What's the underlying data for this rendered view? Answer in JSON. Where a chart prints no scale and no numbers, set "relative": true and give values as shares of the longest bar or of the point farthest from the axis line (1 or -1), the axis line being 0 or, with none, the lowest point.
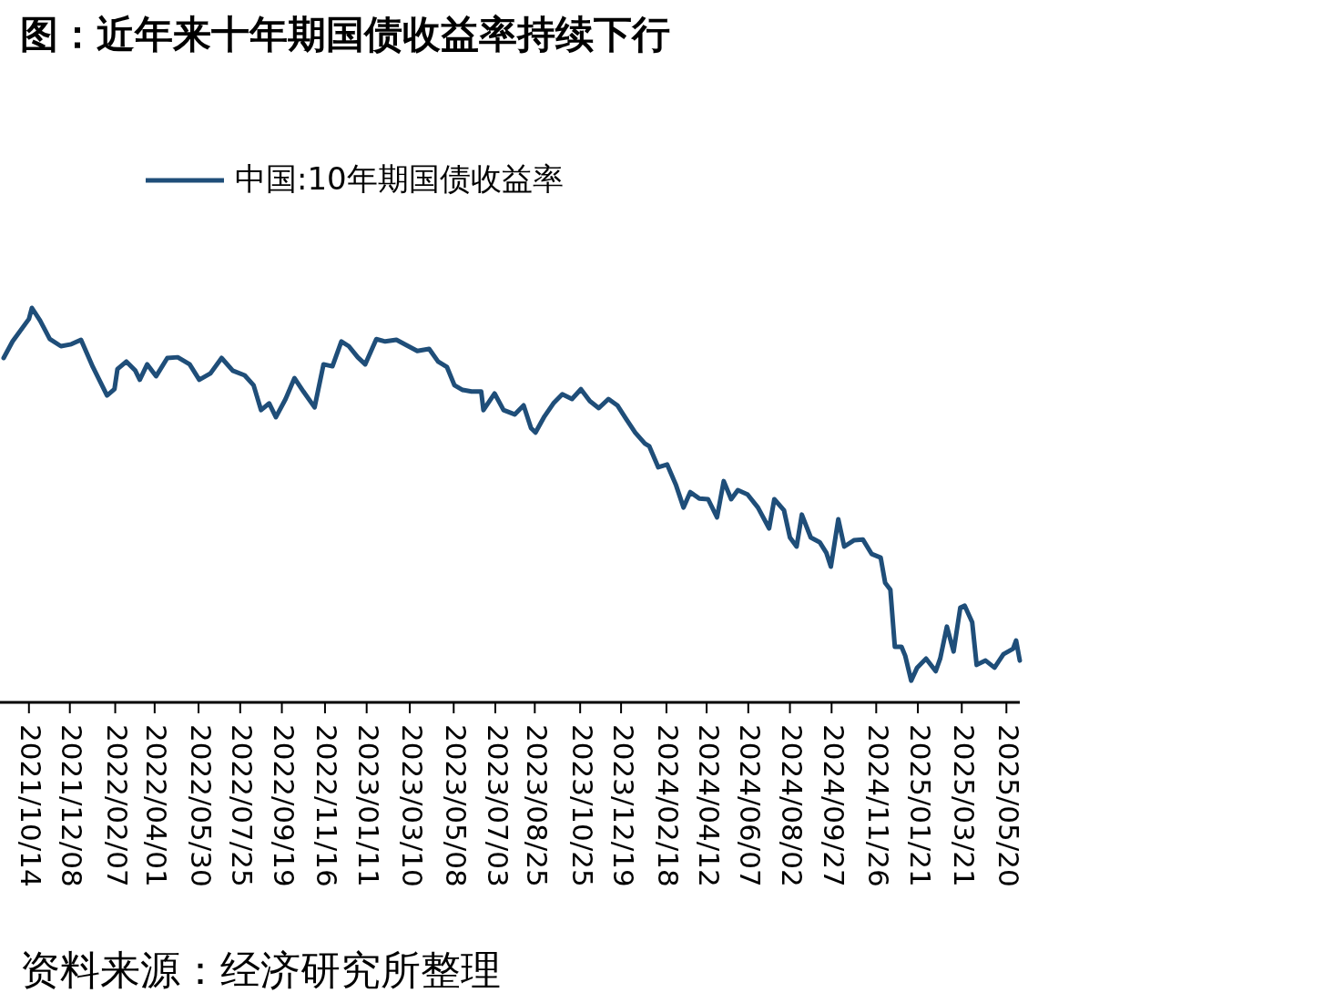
{
  "chart_data": {
    "type": "line",
    "title": "图：近年来十年期国债收益率持续下行",
    "relative": true,
    "legend": "top left",
    "xlim": [
      "2021-09-10",
      "2025-06-07"
    ],
    "xticks": [
      {
        "value": "2021-10-14",
        "label": "2021/10/14"
      },
      {
        "value": "2021-12-08",
        "label": "2021/12/08"
      },
      {
        "value": "2022-02-07",
        "label": "2022/02/07"
      },
      {
        "value": "2022-04-01",
        "label": "2022/04/01"
      },
      {
        "value": "2022-05-30",
        "label": "2022/05/30"
      },
      {
        "value": "2022-07-25",
        "label": "2022/07/25"
      },
      {
        "value": "2022-09-19",
        "label": "2022/09/19"
      },
      {
        "value": "2022-11-16",
        "label": "2022/11/16"
      },
      {
        "value": "2023-01-11",
        "label": "2023/01/11"
      },
      {
        "value": "2023-03-10",
        "label": "2023/03/10"
      },
      {
        "value": "2023-05-08",
        "label": "2023/05/08"
      },
      {
        "value": "2023-07-03",
        "label": "2023/07/03"
      },
      {
        "value": "2023-08-25",
        "label": "2023/08/25"
      },
      {
        "value": "2023-10-25",
        "label": "2023/10/25"
      },
      {
        "value": "2023-12-19",
        "label": "2023/12/19"
      },
      {
        "value": "2024-02-18",
        "label": "2024/02/18"
      },
      {
        "value": "2024-04-12",
        "label": "2024/04/12"
      },
      {
        "value": "2024-06-07",
        "label": "2024/06/07"
      },
      {
        "value": "2024-08-02",
        "label": "2024/08/02"
      },
      {
        "value": "2024-09-27",
        "label": "2024/09/27"
      },
      {
        "value": "2024-11-26",
        "label": "2024/11/26"
      },
      {
        "value": "2025-01-21",
        "label": "2025/01/21"
      },
      {
        "value": "2025-03-21",
        "label": "2025/03/21"
      },
      {
        "value": "2025-05-20",
        "label": "2025/05/20"
      }
    ],
    "x": [
      "2021-09-10",
      "2021-09-22",
      "2021-10-14",
      "2021-10-18",
      "2021-10-29",
      "2021-11-11",
      "2021-11-26",
      "2021-12-10",
      "2021-12-23",
      "2022-01-08",
      "2022-01-27",
      "2022-02-06",
      "2022-02-10",
      "2022-02-22",
      "2022-03-06",
      "2022-03-12",
      "2022-03-22",
      "2022-04-03",
      "2022-04-18",
      "2022-05-02",
      "2022-05-18",
      "2022-05-31",
      "2022-06-15",
      "2022-06-30",
      "2022-07-15",
      "2022-07-31",
      "2022-08-12",
      "2022-08-22",
      "2022-09-02",
      "2022-09-11",
      "2022-09-24",
      "2022-10-06",
      "2022-10-18",
      "2022-11-02",
      "2022-11-14",
      "2022-11-26",
      "2022-12-08",
      "2022-12-18",
      "2022-12-30",
      "2023-01-09",
      "2023-01-24",
      "2023-02-05",
      "2023-02-20",
      "2023-03-08",
      "2023-03-20",
      "2023-04-05",
      "2023-04-17",
      "2023-04-29",
      "2023-05-09",
      "2023-05-20",
      "2023-06-01",
      "2023-06-14",
      "2023-06-17",
      "2023-07-02",
      "2023-07-14",
      "2023-07-29",
      "2023-08-10",
      "2023-08-20",
      "2023-08-26",
      "2023-09-07",
      "2023-09-19",
      "2023-10-01",
      "2023-10-14",
      "2023-10-26",
      "2023-11-07",
      "2023-11-19",
      "2023-12-02",
      "2023-12-14",
      "2023-12-26",
      "2024-01-07",
      "2024-01-20",
      "2024-01-26",
      "2024-02-07",
      "2024-02-19",
      "2024-03-02",
      "2024-03-12",
      "2024-03-21",
      "2024-04-02",
      "2024-04-14",
      "2024-04-26",
      "2024-05-05",
      "2024-05-15",
      "2024-05-24",
      "2024-06-06",
      "2024-06-20",
      "2024-07-05",
      "2024-07-12",
      "2024-07-25",
      "2024-08-02",
      "2024-08-11",
      "2024-08-18",
      "2024-08-30",
      "2024-09-11",
      "2024-09-20",
      "2024-09-26",
      "2024-10-06",
      "2024-10-14",
      "2024-10-27",
      "2024-11-08",
      "2024-11-20",
      "2024-12-02",
      "2024-12-08",
      "2024-12-15",
      "2024-12-21",
      "2024-12-30",
      "2025-01-04",
      "2025-01-12",
      "2025-01-20",
      "2025-02-01",
      "2025-02-14",
      "2025-02-20",
      "2025-03-01",
      "2025-03-10",
      "2025-03-19",
      "2025-03-25",
      "2025-04-04",
      "2025-04-10",
      "2025-04-22",
      "2025-05-04",
      "2025-05-16",
      "2025-05-29",
      "2025-06-02",
      "2025-06-07"
    ],
    "series": [
      {
        "name": "中国:10年期国债收益率",
        "color": "#1f4e79",
        "values": [
          0.873,
          0.915,
          0.972,
          1.0,
          0.968,
          0.921,
          0.903,
          0.908,
          0.919,
          0.85,
          0.778,
          0.794,
          0.845,
          0.864,
          0.841,
          0.818,
          0.857,
          0.827,
          0.873,
          0.875,
          0.857,
          0.818,
          0.834,
          0.873,
          0.841,
          0.829,
          0.804,
          0.741,
          0.758,
          0.723,
          0.769,
          0.822,
          0.788,
          0.748,
          0.857,
          0.852,
          0.915,
          0.903,
          0.875,
          0.857,
          0.921,
          0.915,
          0.919,
          0.903,
          0.891,
          0.896,
          0.864,
          0.85,
          0.804,
          0.792,
          0.788,
          0.788,
          0.741,
          0.783,
          0.741,
          0.73,
          0.753,
          0.695,
          0.684,
          0.725,
          0.758,
          0.781,
          0.769,
          0.794,
          0.764,
          0.746,
          0.769,
          0.753,
          0.718,
          0.684,
          0.656,
          0.649,
          0.596,
          0.603,
          0.55,
          0.494,
          0.533,
          0.517,
          0.515,
          0.469,
          0.561,
          0.515,
          0.538,
          0.527,
          0.494,
          0.441,
          0.515,
          0.487,
          0.418,
          0.395,
          0.476,
          0.418,
          0.406,
          0.379,
          0.344,
          0.464,
          0.395,
          0.411,
          0.413,
          0.376,
          0.367,
          0.303,
          0.286,
          0.141,
          0.141,
          0.118,
          0.055,
          0.088,
          0.111,
          0.079,
          0.111,
          0.192,
          0.129,
          0.24,
          0.245,
          0.203,
          0.095,
          0.106,
          0.088,
          0.122,
          0.136,
          0.157,
          0.106
        ]
      }
    ],
    "annotations": [
      "资料来源：经济研究所整理"
    ]
  }
}
